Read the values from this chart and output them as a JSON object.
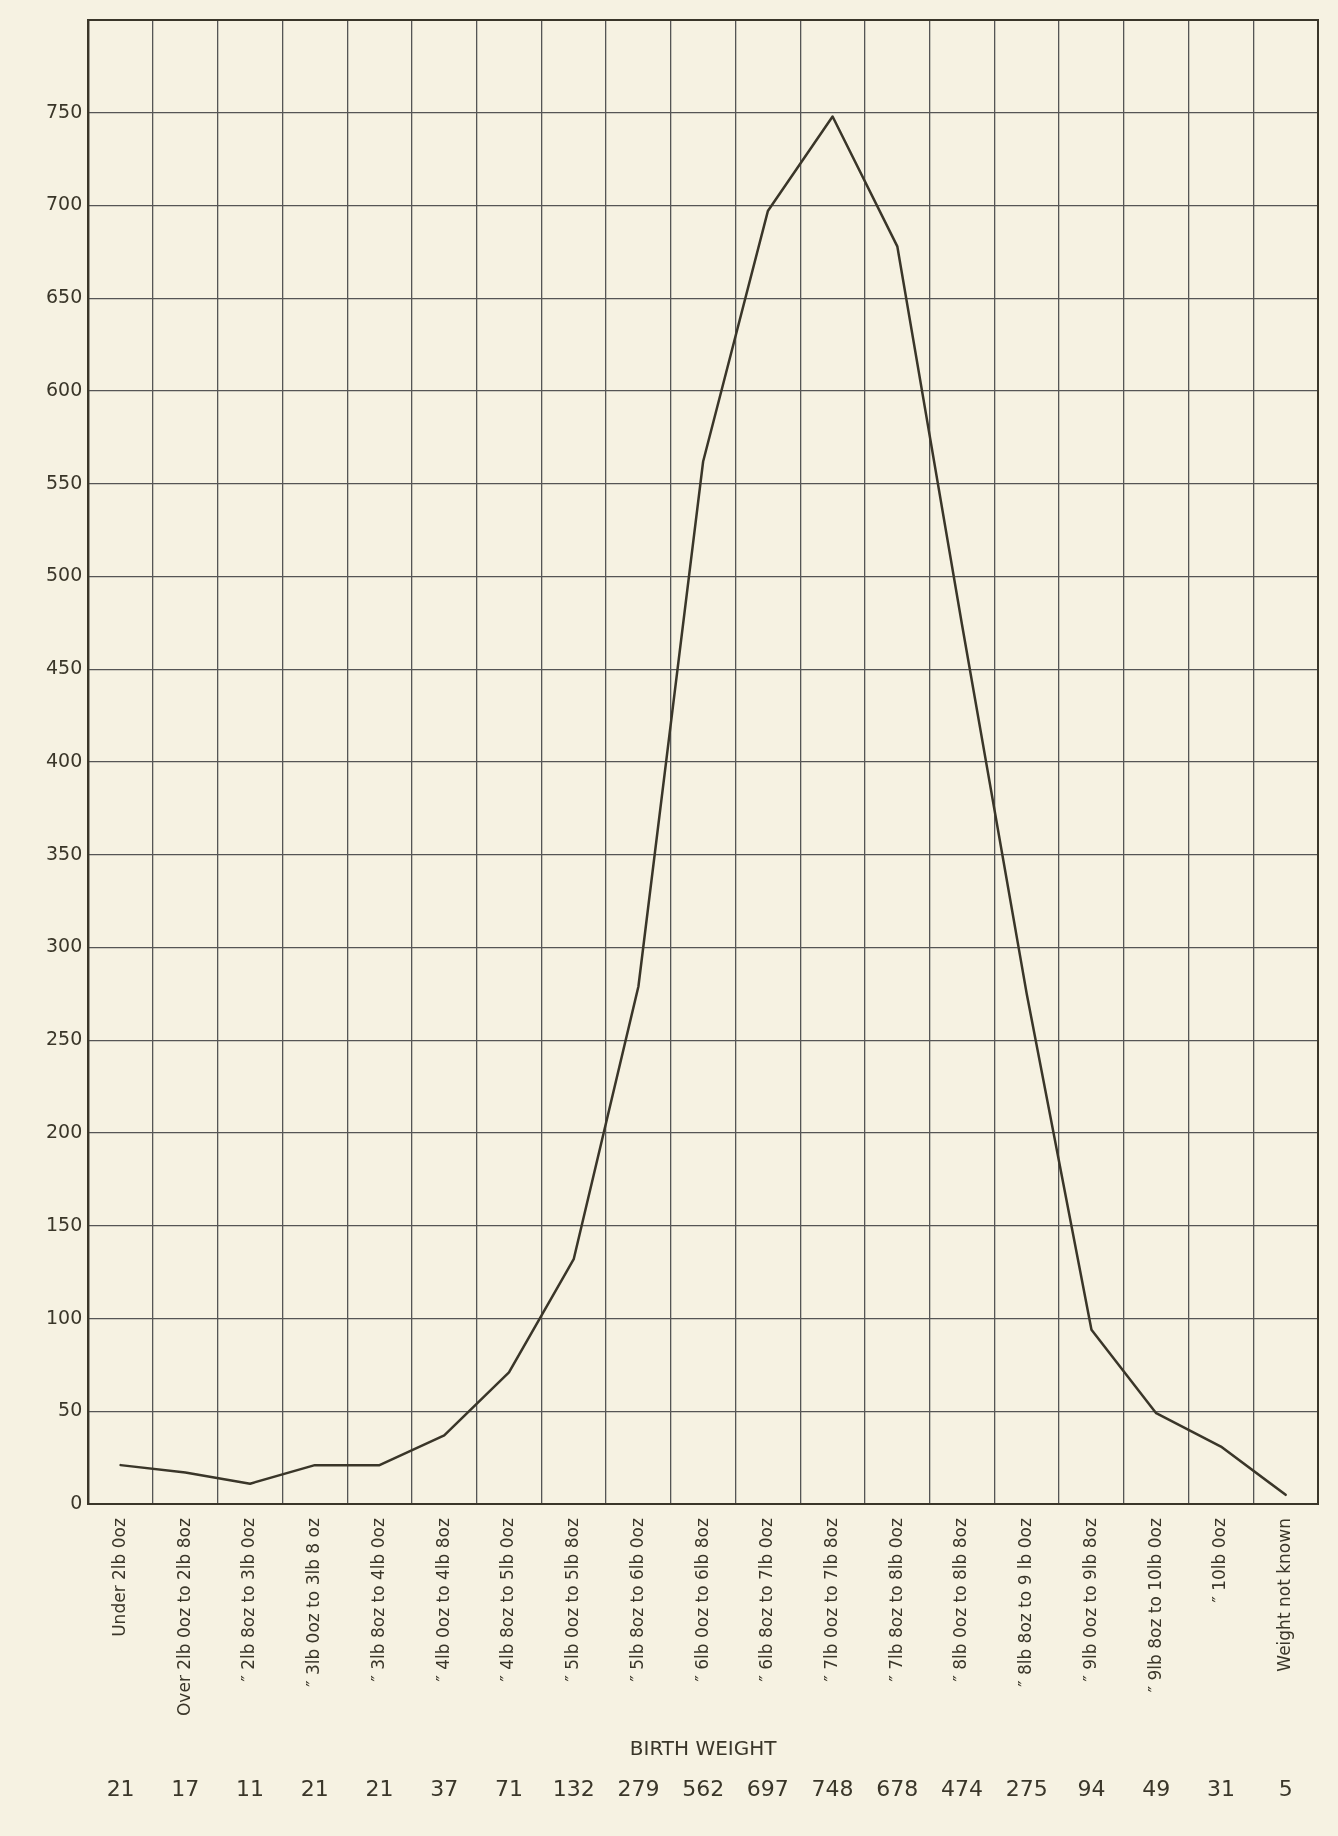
{
  "chart_data": {
    "type": "line",
    "xlabel": "BIRTH WEIGHT",
    "categories": [
      "Under 2lb 0oz",
      "Over 2lb 0oz to 2lb 8oz",
      "″ 2lb 8oz to 3lb 0oz",
      "″ 3lb 0oz to 3lb 8 oz",
      "″ 3lb 8oz to 4lb 0oz",
      "″ 4lb 0oz to 4lb 8oz",
      "″ 4lb 8oz to 5lb 0oz",
      "″ 5lb 0oz to 5lb 8oz",
      "″ 5lb 8oz to 6lb 0oz",
      "″ 6lb 0oz to 6lb 8oz",
      "″ 6lb 8oz to 7lb 0oz",
      "″ 7lb 0oz to 7lb 8oz",
      "″ 7lb 8oz to 8lb 0oz",
      "″ 8lb 0oz to 8lb 8oz",
      "″ 8lb 8oz to 9 lb 0oz",
      "″ 9lb 0oz to 9lb 8oz",
      "″ 9lb 8oz to 10lb 0oz",
      "″ 10lb 0oz",
      "Weight not known"
    ],
    "series": [
      {
        "color": "#3a3629",
        "values": [
          21,
          17,
          11,
          21,
          21,
          37,
          71,
          132,
          279,
          562,
          697,
          748,
          678,
          474,
          275,
          94,
          49,
          31,
          5
        ]
      }
    ],
    "ylim": [
      0,
      800
    ],
    "yticks": [
      0,
      50,
      100,
      150,
      200,
      250,
      300,
      350,
      400,
      450,
      500,
      550,
      600,
      650,
      700,
      750,
      {
        "value": 800,
        "label": null
      }
    ],
    "grid": true,
    "legend": false,
    "marker": "none",
    "line_style": "solid",
    "data_labels": true
  }
}
